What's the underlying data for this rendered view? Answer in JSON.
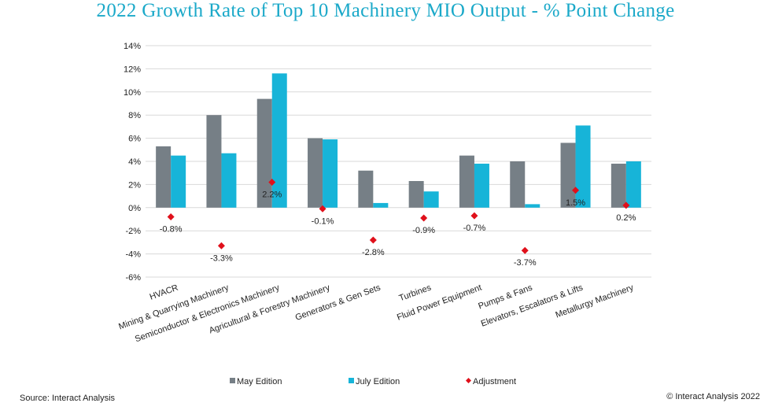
{
  "title": "2022 Growth Rate of Top 10 Machinery MIO Output - % Point Change",
  "footer": {
    "source": "Source: Interact Analysis",
    "copyright": "© Interact Analysis 2022"
  },
  "colors": {
    "may": "#767f86",
    "july": "#17b4d8",
    "adjustment": "#e0101b",
    "grid": "#d9d9d9",
    "title": "#1ba9c9"
  },
  "chart_data": {
    "type": "bar",
    "title": "2022 Growth Rate of Top 10 Machinery MIO Output - % Point Change",
    "xlabel": "",
    "ylabel": "",
    "ylim": [
      -6,
      14
    ],
    "ytick_step": 2,
    "ytick_labels": [
      "-6%",
      "-4%",
      "-2%",
      "0%",
      "2%",
      "4%",
      "6%",
      "8%",
      "10%",
      "12%",
      "14%"
    ],
    "grid": true,
    "legend_position": "bottom",
    "categories": [
      "HVACR",
      "Mining & Quarrying Machinery",
      "Semiconductor & Electronics Machinery",
      "Agricultural & Forestry Machinery",
      "Generators & Gen Sets",
      "Turbines",
      "Fluid Power Equipment",
      "Pumps & Fans",
      "Elevators, Escalators & Lifts",
      "Metallurgy Machinery"
    ],
    "series": [
      {
        "name": "May Edition",
        "kind": "bar",
        "values": [
          5.3,
          8.0,
          9.4,
          6.0,
          3.2,
          2.3,
          4.5,
          4.0,
          5.6,
          3.8
        ]
      },
      {
        "name": "July Edition",
        "kind": "bar",
        "values": [
          4.5,
          4.7,
          11.6,
          5.9,
          0.4,
          1.4,
          3.8,
          0.3,
          7.1,
          4.0
        ]
      },
      {
        "name": "Adjustment",
        "kind": "marker",
        "values": [
          -0.8,
          -3.3,
          2.2,
          -0.1,
          -2.8,
          -0.9,
          -0.7,
          -3.7,
          1.5,
          0.2
        ],
        "labels": [
          "-0.8%",
          "-3.3%",
          "2.2%",
          "-0.1%",
          "-2.8%",
          "-0.9%",
          "-0.7%",
          "-3.7%",
          "1.5%",
          "0.2%"
        ]
      }
    ]
  }
}
